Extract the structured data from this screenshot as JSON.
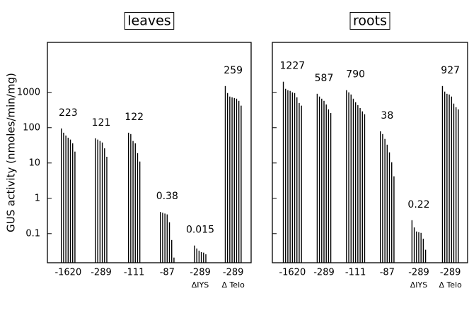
{
  "chart_data": [
    {
      "type": "bar",
      "title": "leaves",
      "ylabel": "GUS activity (nmoles/min/mg)",
      "log_scale": true,
      "color": "#000000",
      "ylim": [
        0.015,
        26000
      ],
      "yticks": [
        0.1,
        1,
        10,
        100,
        1000
      ],
      "categories": [
        "-1620",
        "-289",
        "-111",
        "-87",
        "-289",
        "-289"
      ],
      "subcategories": [
        null,
        null,
        null,
        null,
        "ΔIYS",
        "Δ Telo"
      ],
      "values": [
        223,
        121,
        122,
        0.38,
        0.015,
        259
      ],
      "plants": [
        [
          95,
          72,
          60,
          52,
          46,
          36,
          21
        ],
        [
          50,
          46,
          42,
          38,
          26,
          15
        ],
        [
          72,
          66,
          42,
          36,
          19,
          11
        ],
        [
          0.41,
          0.39,
          0.37,
          0.35,
          0.21,
          0.066,
          0.021
        ],
        [
          0.046,
          0.038,
          0.033,
          0.03,
          0.029,
          0.026
        ],
        [
          1510,
          955,
          760,
          725,
          690,
          660,
          575,
          420
        ]
      ]
    },
    {
      "type": "bar",
      "title": "roots",
      "log_scale": true,
      "color": "#000000",
      "ylim": [
        0.015,
        26000
      ],
      "yticks": [
        0.1,
        1,
        10,
        100,
        1000
      ],
      "categories": [
        "-1620",
        "-289",
        "-111",
        "-87",
        "-289",
        "-289"
      ],
      "subcategories": [
        null,
        null,
        null,
        null,
        "ΔIYS",
        "Δ Telo"
      ],
      "values": [
        1227,
        587,
        790,
        38,
        0.22,
        927
      ],
      "plants": [
        [
          2000,
          1260,
          1150,
          1100,
          1000,
          955,
          725,
          500,
          420
        ],
        [
          910,
          760,
          660,
          575,
          455,
          330,
          260
        ],
        [
          1150,
          1000,
          870,
          660,
          525,
          435,
          360,
          290,
          240
        ],
        [
          79,
          66,
          48,
          33,
          20,
          10.5,
          4.2
        ],
        [
          0.24,
          0.15,
          0.115,
          0.11,
          0.105,
          0.072,
          0.035
        ],
        [
          1510,
          1050,
          910,
          870,
          760,
          480,
          380,
          330
        ]
      ]
    }
  ]
}
